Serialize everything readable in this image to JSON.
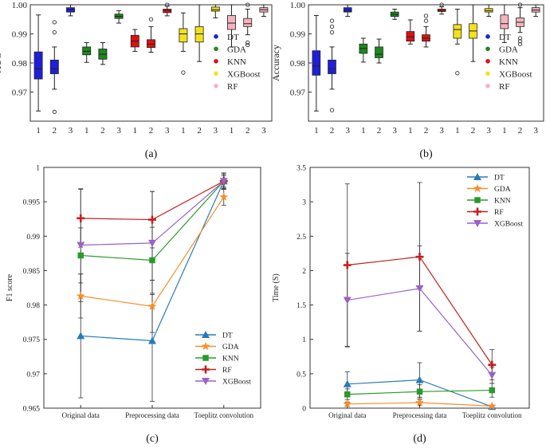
{
  "chart_data": [
    {
      "panel": "a",
      "caption": "(a)",
      "type": "boxplot",
      "ylabel": "AUC",
      "ylim": [
        0.96,
        1.0
      ],
      "yticks": [
        0.97,
        0.98,
        0.99,
        1.0
      ],
      "ytick_labels": [
        "0.97",
        "0.98",
        "0.99",
        "1.00"
      ],
      "group_xticks": [
        "1",
        "2",
        "3"
      ],
      "legend": [
        "DT",
        "GDA",
        "KNN",
        "XGBoost",
        "RF"
      ],
      "groups": [
        {
          "name": "DT",
          "color": "#1f1fd8",
          "boxes": [
            {
              "q1": 0.9745,
              "median": 0.978,
              "q3": 0.9838,
              "wlo": 0.9635,
              "whi": 0.9965,
              "outliers": []
            },
            {
              "q1": 0.9763,
              "median": 0.978,
              "q3": 0.981,
              "wlo": 0.971,
              "whi": 0.9855,
              "outliers": [
                0.9905,
                0.994,
                0.9632
              ]
            },
            {
              "q1": 0.9975,
              "median": 0.9983,
              "q3": 0.999,
              "wlo": 0.9962,
              "whi": 1.0,
              "outliers": []
            }
          ]
        },
        {
          "name": "GDA",
          "color": "#1a8a1a",
          "boxes": [
            {
              "q1": 0.9828,
              "median": 0.984,
              "q3": 0.9855,
              "wlo": 0.9802,
              "whi": 0.987,
              "outliers": []
            },
            {
              "q1": 0.9813,
              "median": 0.983,
              "q3": 0.9848,
              "wlo": 0.9795,
              "whi": 0.987,
              "outliers": []
            },
            {
              "q1": 0.9953,
              "median": 0.996,
              "q3": 0.9968,
              "wlo": 0.9937,
              "whi": 0.998,
              "outliers": []
            }
          ]
        },
        {
          "name": "KNN",
          "color": "#e01010",
          "boxes": [
            {
              "q1": 0.9855,
              "median": 0.9875,
              "q3": 0.9895,
              "wlo": 0.984,
              "whi": 0.9915,
              "outliers": []
            },
            {
              "q1": 0.9853,
              "median": 0.9865,
              "q3": 0.988,
              "wlo": 0.9837,
              "whi": 0.9925,
              "outliers": [
                0.995
              ]
            },
            {
              "q1": 0.9973,
              "median": 0.998,
              "q3": 0.9985,
              "wlo": 0.9962,
              "whi": 0.9995,
              "outliers": [
                1.0
              ]
            }
          ]
        },
        {
          "name": "XGBoost",
          "color": "#f2e21a",
          "boxes": [
            {
              "q1": 0.9872,
              "median": 0.99,
              "q3": 0.9918,
              "wlo": 0.984,
              "whi": 0.9972,
              "outliers": [
                0.9767
              ]
            },
            {
              "q1": 0.9872,
              "median": 0.99,
              "q3": 0.9925,
              "wlo": 0.9805,
              "whi": 1.0,
              "outliers": []
            },
            {
              "q1": 0.9978,
              "median": 0.9983,
              "q3": 0.9992,
              "wlo": 0.9955,
              "whi": 1.0,
              "outliers": []
            }
          ]
        },
        {
          "name": "RF",
          "color": "#f5b3bf",
          "boxes": [
            {
              "q1": 0.9915,
              "median": 0.9937,
              "q3": 0.9963,
              "wlo": 0.9855,
              "whi": 1.0,
              "outliers": []
            },
            {
              "q1": 0.9925,
              "median": 0.9935,
              "q3": 0.9953,
              "wlo": 0.9897,
              "whi": 0.9985,
              "outliers": [
                0.987,
                0.9862,
                1.0
              ]
            },
            {
              "q1": 0.9975,
              "median": 0.9983,
              "q3": 0.999,
              "wlo": 0.996,
              "whi": 1.0,
              "outliers": []
            }
          ]
        }
      ]
    },
    {
      "panel": "b",
      "caption": "(b)",
      "type": "boxplot",
      "ylabel": "Accuracy",
      "ylim": [
        0.96,
        1.0
      ],
      "yticks": [
        0.97,
        0.98,
        0.99,
        1.0
      ],
      "ytick_labels": [
        "0.97",
        "0.98",
        "0.99",
        "1.00"
      ],
      "group_xticks": [
        "1",
        "2",
        "3"
      ],
      "legend": [
        "DT",
        "GDA",
        "KNN",
        "XGBoost",
        "RF"
      ],
      "groups": [
        {
          "name": "DT",
          "color": "#1f1fd8",
          "boxes": [
            {
              "q1": 0.9758,
              "median": 0.979,
              "q3": 0.9842,
              "wlo": 0.9635,
              "whi": 0.9963,
              "outliers": []
            },
            {
              "q1": 0.9763,
              "median": 0.978,
              "q3": 0.981,
              "wlo": 0.971,
              "whi": 0.9855,
              "outliers": [
                0.9905,
                0.9925,
                0.9945,
                0.9638
              ]
            },
            {
              "q1": 0.9975,
              "median": 0.998,
              "q3": 0.999,
              "wlo": 0.996,
              "whi": 1.0,
              "outliers": []
            }
          ]
        },
        {
          "name": "GDA",
          "color": "#1a8a1a",
          "boxes": [
            {
              "q1": 0.9833,
              "median": 0.985,
              "q3": 0.9865,
              "wlo": 0.9803,
              "whi": 0.9885,
              "outliers": []
            },
            {
              "q1": 0.9818,
              "median": 0.983,
              "q3": 0.9855,
              "wlo": 0.98,
              "whi": 0.9882,
              "outliers": []
            },
            {
              "q1": 0.996,
              "median": 0.9967,
              "q3": 0.9975,
              "wlo": 0.995,
              "whi": 0.9985,
              "outliers": []
            }
          ]
        },
        {
          "name": "KNN",
          "color": "#e01010",
          "boxes": [
            {
              "q1": 0.9875,
              "median": 0.989,
              "q3": 0.9908,
              "wlo": 0.9865,
              "whi": 0.9948,
              "outliers": []
            },
            {
              "q1": 0.9875,
              "median": 0.9885,
              "q3": 0.9897,
              "wlo": 0.9855,
              "whi": 0.9925,
              "outliers": [
                0.9945,
                0.9962
              ]
            },
            {
              "q1": 0.9977,
              "median": 0.998,
              "q3": 0.9985,
              "wlo": 0.9968,
              "whi": 0.9993,
              "outliers": [
                1.0
              ]
            }
          ]
        },
        {
          "name": "XGBoost",
          "color": "#f2e21a",
          "boxes": [
            {
              "q1": 0.9885,
              "median": 0.9915,
              "q3": 0.9932,
              "wlo": 0.9865,
              "whi": 0.9985,
              "outliers": [
                0.9765
              ]
            },
            {
              "q1": 0.9885,
              "median": 0.991,
              "q3": 0.9935,
              "wlo": 0.9805,
              "whi": 1.0,
              "outliers": []
            },
            {
              "q1": 0.9975,
              "median": 0.998,
              "q3": 0.9987,
              "wlo": 0.996,
              "whi": 1.0,
              "outliers": []
            }
          ]
        },
        {
          "name": "RF",
          "color": "#f5b3bf",
          "boxes": [
            {
              "q1": 0.9918,
              "median": 0.9935,
              "q3": 0.9965,
              "wlo": 0.987,
              "whi": 1.0,
              "outliers": []
            },
            {
              "q1": 0.9925,
              "median": 0.994,
              "q3": 0.9955,
              "wlo": 0.9905,
              "whi": 0.999,
              "outliers": [
                0.9865,
                0.9875,
                0.9885,
                1.0
              ]
            },
            {
              "q1": 0.9975,
              "median": 0.9982,
              "q3": 0.999,
              "wlo": 0.996,
              "whi": 1.0,
              "outliers": []
            }
          ]
        }
      ]
    },
    {
      "panel": "c",
      "caption": "(c)",
      "type": "line",
      "ylabel": "F1 score",
      "categories": [
        "Original data",
        "Preprocessing data",
        "Toeplitz convolution"
      ],
      "ylim": [
        0.965,
        1.0
      ],
      "yticks": [
        0.965,
        0.97,
        0.975,
        0.98,
        0.985,
        0.99,
        0.995,
        1.0
      ],
      "ytick_labels": [
        "0.965",
        "0.97",
        "0.975",
        "0.98",
        "0.985",
        "0.99",
        "0.995",
        "1"
      ],
      "legend_position": "lower-right",
      "series": [
        {
          "name": "DT",
          "color": "#2a7ab8",
          "marker": "triangle",
          "values": [
            0.9755,
            0.9748,
            0.998
          ],
          "err": [
            0.009,
            0.0088,
            0.0012
          ]
        },
        {
          "name": "GDA",
          "color": "#f5902a",
          "marker": "star",
          "values": [
            0.9813,
            0.9798,
            0.9957
          ],
          "err": [
            0.0032,
            0.0038,
            0.0012
          ]
        },
        {
          "name": "KNN",
          "color": "#2a9a2a",
          "marker": "square",
          "values": [
            0.9872,
            0.9865,
            0.998
          ],
          "err": [
            0.004,
            0.0048,
            0.001
          ]
        },
        {
          "name": "RF",
          "color": "#c42020",
          "marker": "plus",
          "values": [
            0.9926,
            0.9924,
            0.998
          ],
          "err": [
            0.0042,
            0.0041,
            0.0008
          ]
        },
        {
          "name": "XGBoost",
          "color": "#9a62c8",
          "marker": "triangle-down",
          "values": [
            0.9887,
            0.989,
            0.998
          ],
          "err": [
            0.0082,
            0.0075,
            0.0012
          ]
        }
      ]
    },
    {
      "panel": "d",
      "caption": "(d)",
      "type": "line",
      "ylabel": "Time (S)",
      "categories": [
        "Original data",
        "Preprocessing data",
        "Toeplitz convolution"
      ],
      "ylim": [
        0,
        3.5
      ],
      "yticks": [
        0,
        0.5,
        1,
        1.5,
        2,
        2.5,
        3,
        3.5
      ],
      "ytick_labels": [
        "0",
        "0.5",
        "1",
        "1.5",
        "2",
        "2.5",
        "3",
        "3.5"
      ],
      "legend_position": "top-right",
      "series": [
        {
          "name": "DT",
          "color": "#2a7ab8",
          "marker": "triangle",
          "values": [
            0.35,
            0.41,
            0.02
          ],
          "err": [
            0.18,
            0.25,
            0.01
          ]
        },
        {
          "name": "GDA",
          "color": "#f5902a",
          "marker": "star",
          "values": [
            0.06,
            0.08,
            0.03
          ],
          "err": [
            0.03,
            0.04,
            0.01
          ]
        },
        {
          "name": "KNN",
          "color": "#2a9a2a",
          "marker": "square",
          "values": [
            0.2,
            0.24,
            0.26
          ],
          "err": [
            0.08,
            0.1,
            0.1
          ]
        },
        {
          "name": "RF",
          "color": "#c42020",
          "marker": "plus",
          "values": [
            2.08,
            2.2,
            0.63
          ],
          "err": [
            1.18,
            1.08,
            0.22
          ]
        },
        {
          "name": "XGBoost",
          "color": "#9a62c8",
          "marker": "triangle-down",
          "values": [
            1.57,
            1.74,
            0.48
          ],
          "err": [
            0.68,
            0.62,
            0.12
          ]
        }
      ]
    }
  ]
}
